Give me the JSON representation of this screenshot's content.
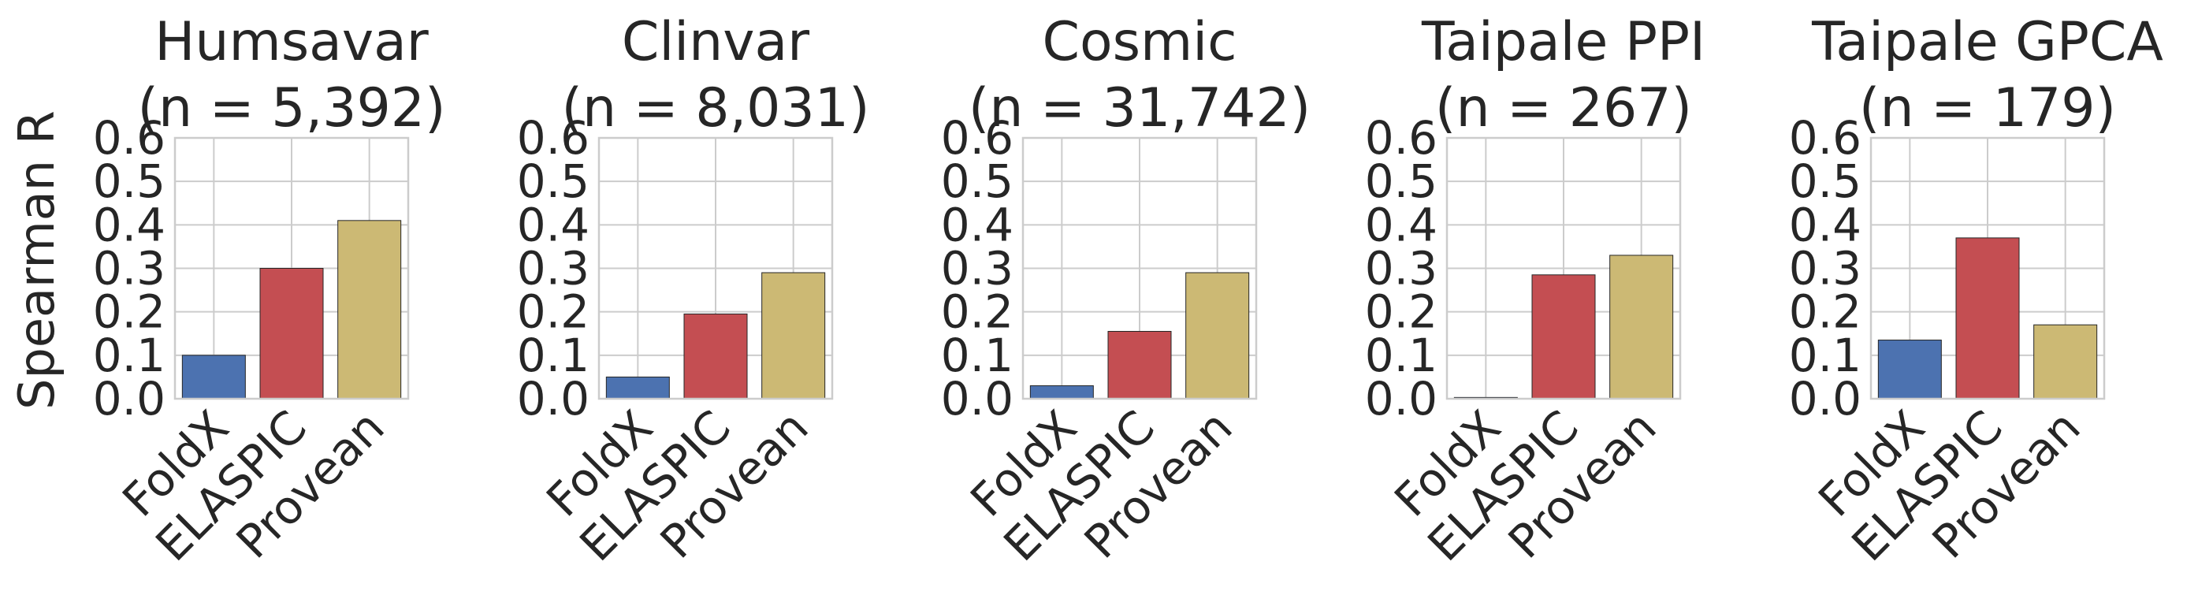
{
  "figure": {
    "ylabel": "Spearman R"
  },
  "chart_data": [
    {
      "type": "bar",
      "title": "Humsavar",
      "subtitle": "(n = 5,392)",
      "categories": [
        "FoldX",
        "ELASPIC",
        "Provean"
      ],
      "values": [
        0.1,
        0.3,
        0.41
      ],
      "colors": [
        "#4c72b0",
        "#c44e52",
        "#ccb974"
      ],
      "ylim": [
        0,
        0.6
      ],
      "yticks": [
        "0.0",
        "0.1",
        "0.2",
        "0.3",
        "0.4",
        "0.5",
        "0.6"
      ],
      "grid": true
    },
    {
      "type": "bar",
      "title": "Clinvar",
      "subtitle": "(n = 8,031)",
      "categories": [
        "FoldX",
        "ELASPIC",
        "Provean"
      ],
      "values": [
        0.05,
        0.195,
        0.29
      ],
      "colors": [
        "#4c72b0",
        "#c44e52",
        "#ccb974"
      ],
      "ylim": [
        0,
        0.6
      ],
      "yticks": [
        "0.0",
        "0.1",
        "0.2",
        "0.3",
        "0.4",
        "0.5",
        "0.6"
      ],
      "grid": true
    },
    {
      "type": "bar",
      "title": "Cosmic",
      "subtitle": "(n = 31,742)",
      "categories": [
        "FoldX",
        "ELASPIC",
        "Provean"
      ],
      "values": [
        0.03,
        0.155,
        0.29
      ],
      "colors": [
        "#4c72b0",
        "#c44e52",
        "#ccb974"
      ],
      "ylim": [
        0,
        0.6
      ],
      "yticks": [
        "0.0",
        "0.1",
        "0.2",
        "0.3",
        "0.4",
        "0.5",
        "0.6"
      ],
      "grid": true
    },
    {
      "type": "bar",
      "title": "Taipale PPI",
      "subtitle": "(n = 267)",
      "categories": [
        "FoldX",
        "ELASPIC",
        "Provean"
      ],
      "values": [
        0.003,
        0.285,
        0.33
      ],
      "colors": [
        "#4c72b0",
        "#c44e52",
        "#ccb974"
      ],
      "ylim": [
        0,
        0.6
      ],
      "yticks": [
        "0.0",
        "0.1",
        "0.2",
        "0.3",
        "0.4",
        "0.5",
        "0.6"
      ],
      "grid": true
    },
    {
      "type": "bar",
      "title": "Taipale GPCA",
      "subtitle": "(n = 179)",
      "categories": [
        "FoldX",
        "ELASPIC",
        "Provean"
      ],
      "values": [
        0.135,
        0.37,
        0.17
      ],
      "colors": [
        "#4c72b0",
        "#c44e52",
        "#ccb974"
      ],
      "ylim": [
        0,
        0.6
      ],
      "yticks": [
        "0.0",
        "0.1",
        "0.2",
        "0.3",
        "0.4",
        "0.5",
        "0.6"
      ],
      "grid": true
    }
  ]
}
